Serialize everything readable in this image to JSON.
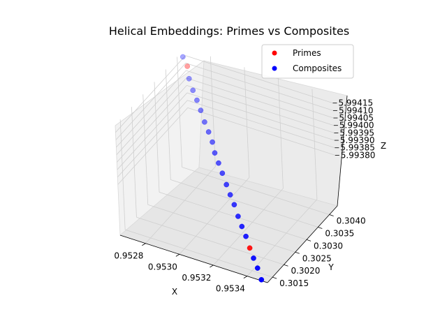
{
  "chart_data": {
    "type": "scatter",
    "projection": "3d",
    "title": "Helical Embeddings: Primes vs Composites",
    "xlabel": "X",
    "ylabel": "Y",
    "zlabel": "Z",
    "xticks": [
      "0.9528",
      "0.9530",
      "0.9532",
      "0.9534"
    ],
    "yticks": [
      "0.3015",
      "0.3020",
      "0.3025",
      "0.3030",
      "0.3035",
      "0.3040"
    ],
    "zticks": [
      "5.99380",
      "5.99385",
      "5.99390",
      "5.99395",
      "5.99400",
      "5.99405",
      "5.99410",
      "5.99415"
    ],
    "grid": true,
    "legend_position": "top-right",
    "series": [
      {
        "name": "Primes",
        "color": "#ff0000",
        "points": [
          {
            "x": 0.95336,
            "y": 0.30172,
            "z": 5.99356
          },
          {
            "x": 0.95269,
            "y": 0.30413,
            "z": 5.99413
          }
        ]
      },
      {
        "name": "Composites",
        "color": "#0000ff",
        "points": [
          {
            "x": 0.95348,
            "y": 0.30131,
            "z": 5.99346
          },
          {
            "x": 0.95344,
            "y": 0.30145,
            "z": 5.9935
          },
          {
            "x": 0.9534,
            "y": 0.30158,
            "z": 5.99353
          },
          {
            "x": 0.95332,
            "y": 0.30186,
            "z": 5.9936
          },
          {
            "x": 0.95328,
            "y": 0.30199,
            "z": 5.99363
          },
          {
            "x": 0.95324,
            "y": 0.30213,
            "z": 5.99366
          },
          {
            "x": 0.9532,
            "y": 0.30227,
            "z": 5.9937
          },
          {
            "x": 0.95316,
            "y": 0.3024,
            "z": 5.99373
          },
          {
            "x": 0.95312,
            "y": 0.30254,
            "z": 5.99376
          },
          {
            "x": 0.95308,
            "y": 0.30267,
            "z": 5.9938
          },
          {
            "x": 0.95304,
            "y": 0.30281,
            "z": 5.99383
          },
          {
            "x": 0.953,
            "y": 0.30295,
            "z": 5.99386
          },
          {
            "x": 0.95297,
            "y": 0.30308,
            "z": 5.9939
          },
          {
            "x": 0.95293,
            "y": 0.30322,
            "z": 5.99393
          },
          {
            "x": 0.95289,
            "y": 0.30335,
            "z": 5.99396
          },
          {
            "x": 0.95285,
            "y": 0.30349,
            "z": 5.994
          },
          {
            "x": 0.95281,
            "y": 0.30363,
            "z": 5.99403
          },
          {
            "x": 0.95277,
            "y": 0.30376,
            "z": 5.99406
          },
          {
            "x": 0.95273,
            "y": 0.3039,
            "z": 5.9941
          },
          {
            "x": 0.95265,
            "y": 0.30424,
            "z": 5.99416
          }
        ]
      }
    ]
  }
}
